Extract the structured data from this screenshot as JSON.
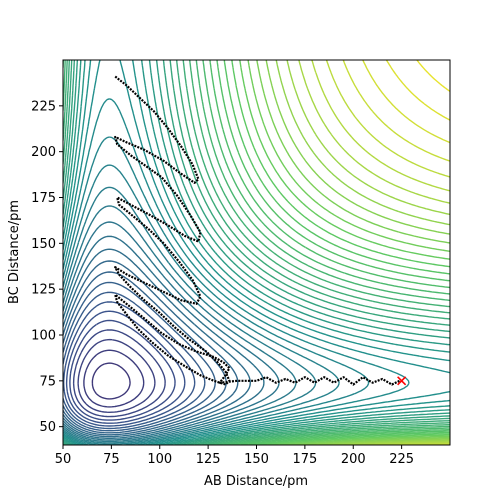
{
  "chart_data": {
    "type": "contour",
    "title": "",
    "xlabel": "AB Distance/pm",
    "ylabel": "BC Distance/pm",
    "xlim": [
      50,
      250
    ],
    "ylim": [
      40,
      250
    ],
    "xticks": [
      50,
      75,
      100,
      125,
      150,
      175,
      200,
      225
    ],
    "yticks": [
      50,
      75,
      100,
      125,
      150,
      175,
      200,
      225
    ],
    "grid": false,
    "colormap": [
      "#440154",
      "#3b528b",
      "#21918c",
      "#5ec962",
      "#fde725"
    ],
    "potential_well_minimum_pm": 74,
    "trajectory": {
      "color": "#000000",
      "points": [
        [
          77,
          241
        ],
        [
          83,
          236
        ],
        [
          90,
          229
        ],
        [
          97,
          222
        ],
        [
          104,
          213
        ],
        [
          111,
          203
        ],
        [
          117,
          193
        ],
        [
          120,
          185
        ],
        [
          118,
          183
        ],
        [
          111,
          188
        ],
        [
          102,
          195
        ],
        [
          92,
          201
        ],
        [
          83,
          205
        ],
        [
          77,
          208
        ],
        [
          78,
          204
        ],
        [
          85,
          198
        ],
        [
          93,
          192
        ],
        [
          101,
          186
        ],
        [
          109,
          176
        ],
        [
          116,
          165
        ],
        [
          121,
          156
        ],
        [
          120,
          151
        ],
        [
          113,
          154
        ],
        [
          104,
          160
        ],
        [
          94,
          166
        ],
        [
          85,
          171
        ],
        [
          78,
          175
        ],
        [
          79,
          171
        ],
        [
          86,
          165
        ],
        [
          94,
          158
        ],
        [
          102,
          150
        ],
        [
          110,
          140
        ],
        [
          117,
          130
        ],
        [
          121,
          121
        ],
        [
          119,
          117
        ],
        [
          111,
          119
        ],
        [
          101,
          124
        ],
        [
          91,
          129
        ],
        [
          83,
          133
        ],
        [
          77,
          137
        ],
        [
          79,
          133
        ],
        [
          85,
          126
        ],
        [
          92,
          119
        ],
        [
          100,
          112
        ],
        [
          108,
          104
        ],
        [
          116,
          97
        ],
        [
          124,
          91
        ],
        [
          130,
          85
        ],
        [
          134,
          80
        ],
        [
          136,
          75
        ],
        [
          134,
          73
        ],
        [
          128,
          75
        ],
        [
          121,
          78
        ],
        [
          113,
          83
        ],
        [
          104,
          89
        ],
        [
          96,
          96
        ],
        [
          89,
          103
        ],
        [
          83,
          111
        ],
        [
          78,
          118
        ],
        [
          77,
          122
        ],
        [
          84,
          116
        ],
        [
          92,
          109
        ],
        [
          101,
          101
        ],
        [
          110,
          95
        ],
        [
          119,
          91
        ],
        [
          128,
          88
        ],
        [
          133,
          85
        ],
        [
          136,
          82
        ],
        [
          134,
          78
        ],
        [
          131,
          74
        ],
        [
          140,
          75
        ],
        [
          150,
          75
        ],
        [
          155,
          77
        ],
        [
          160,
          74
        ],
        [
          165,
          76
        ],
        [
          170,
          74
        ],
        [
          175,
          77
        ],
        [
          180,
          74
        ],
        [
          185,
          77
        ],
        [
          190,
          74
        ],
        [
          195,
          77
        ],
        [
          200,
          73
        ],
        [
          205,
          77
        ],
        [
          210,
          74
        ],
        [
          215,
          76
        ],
        [
          220,
          73
        ],
        [
          224,
          75
        ]
      ]
    },
    "marker": {
      "symbol": "x",
      "color": "#ff0000",
      "x": 225,
      "y": 75
    }
  }
}
